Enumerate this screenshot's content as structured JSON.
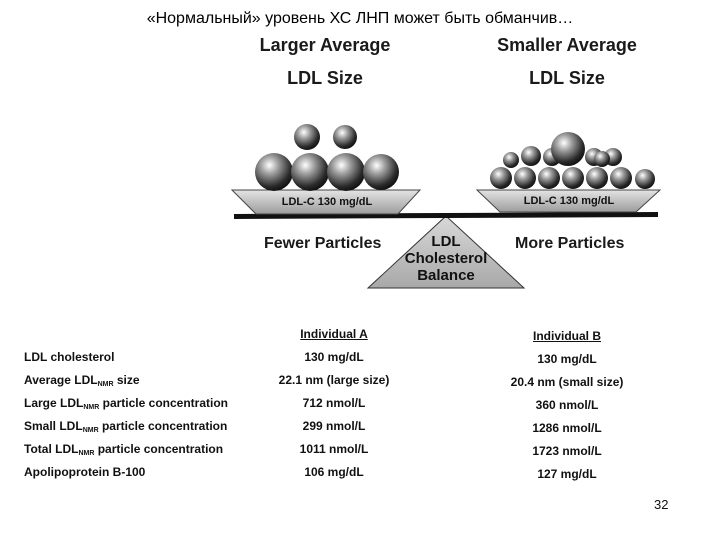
{
  "title": "«Нормальный» уровень ХС ЛНП может быть обманчив…",
  "left_side": {
    "heading_line1": "Larger Average",
    "heading_line2": "LDL Size",
    "tray_label": "LDL-C 130 mg/dL",
    "particle_label": "Fewer Particles"
  },
  "right_side": {
    "heading_line1": "Smaller Average",
    "heading_line2": "LDL Size",
    "tray_label": "LDL-C 130 mg/dL",
    "particle_label": "More Particles"
  },
  "fulcrum": {
    "line1": "LDL",
    "line2": "Cholesterol",
    "line3": "Balance"
  },
  "table": {
    "col_a": "Individual A",
    "col_b": "Individual B",
    "rows": [
      {
        "pre": "LDL cholesterol",
        "sub": "",
        "post": "",
        "a": "130 mg/dL",
        "b": "130 mg/dL"
      },
      {
        "pre": "Average LDL",
        "sub": "NMR",
        "post": " size",
        "a": "22.1 nm (large size)",
        "b": "20.4 nm (small size)"
      },
      {
        "pre": "Large LDL",
        "sub": "NMR",
        "post": " particle concentration",
        "a": "712 nmol/L",
        "b": "360 nmol/L"
      },
      {
        "pre": "Small LDL",
        "sub": "NMR",
        "post": " particle concentration",
        "a": "299 nmol/L",
        "b": "1286 nmol/L"
      },
      {
        "pre": "Total LDL",
        "sub": "NMR",
        "post": " particle concentration",
        "a": "1011 nmol/L",
        "b": "1723 nmol/L"
      },
      {
        "pre": "Apolipoprotein B-100",
        "sub": "",
        "post": "",
        "a": "106 mg/dL",
        "b": "127 mg/dL"
      }
    ]
  },
  "slide_number": "32"
}
